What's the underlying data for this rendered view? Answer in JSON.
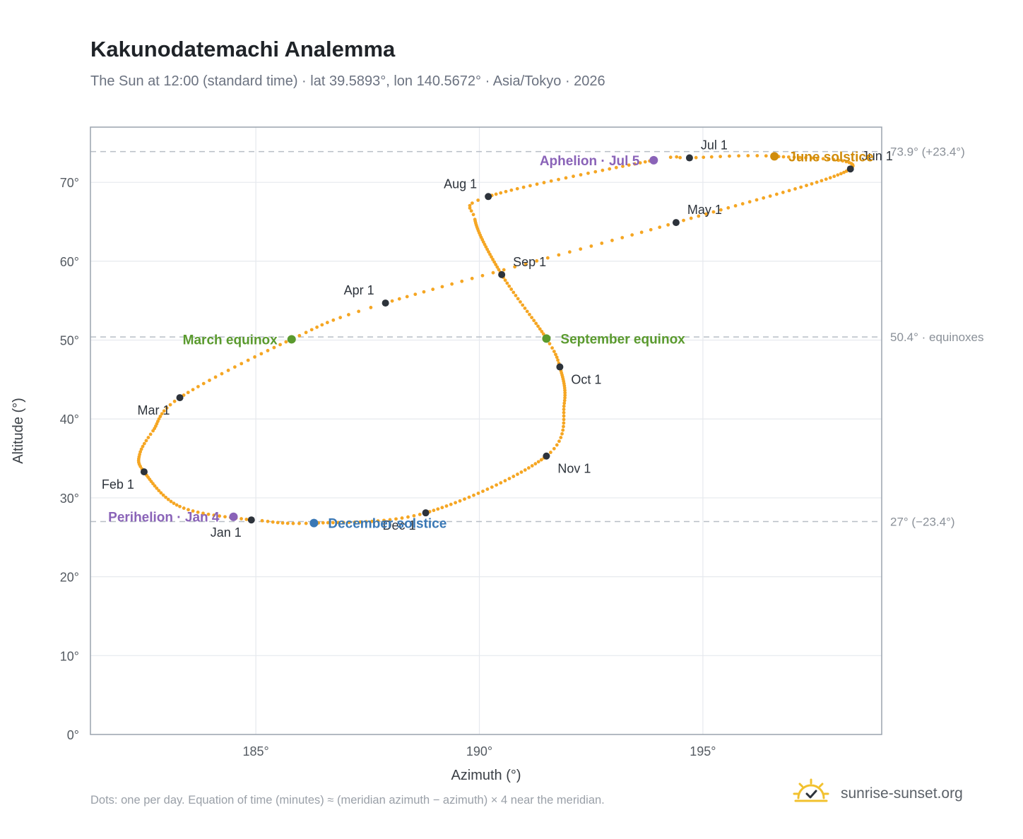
{
  "header": {
    "title": "Kakunodatemachi Analemma",
    "subtitle": "The Sun at 12:00 (standard time) · lat 39.5893°, lon 140.5672° · Asia/Tokyo · 2026"
  },
  "footnote": "Dots: one per day. Equation of time (minutes) ≈ (meridian azimuth − azimuth) × 4 near the meridian.",
  "brand": {
    "text": "sunrise-sunset.org",
    "icon": "sun-logo-icon"
  },
  "chart_data": {
    "type": "scatter",
    "xlabel": "Azimuth (°)",
    "ylabel": "Altitude (°)",
    "xlim": [
      181.3,
      199.0
    ],
    "ylim": [
      0,
      77
    ],
    "x_ticks": [
      185,
      190,
      195
    ],
    "x_tick_labels": [
      "185°",
      "190°",
      "195°"
    ],
    "y_ticks": [
      0,
      10,
      20,
      30,
      40,
      50,
      60,
      70
    ],
    "y_tick_labels": [
      "0°",
      "10°",
      "20°",
      "30°",
      "40°",
      "50°",
      "60°",
      "70°"
    ],
    "grid": true,
    "colors": {
      "path": "#f5a623",
      "month": "#2d333b",
      "equinox": "#5a9a2e",
      "june_solstice": "#d08c0c",
      "december_solstice": "#3a78b5",
      "apsis": "#8a63b8",
      "reference": "#b8bec6"
    },
    "reference_lines": [
      {
        "y": 73.9,
        "label": "73.9° (+23.4°)"
      },
      {
        "y": 50.4,
        "label": "50.4° · equinoxes"
      },
      {
        "y": 27.0,
        "label": "27° (−23.4°)"
      }
    ],
    "path_anchors": [
      {
        "doy": 1,
        "az": 184.9,
        "alt": 27.2
      },
      {
        "doy": 15,
        "az": 183.3,
        "alt": 28.9
      },
      {
        "doy": 32,
        "az": 182.5,
        "alt": 33.3
      },
      {
        "doy": 40,
        "az": 182.4,
        "alt": 35.5
      },
      {
        "doy": 48,
        "az": 182.7,
        "alt": 38.5
      },
      {
        "doy": 60,
        "az": 183.3,
        "alt": 42.7
      },
      {
        "doy": 79,
        "az": 185.8,
        "alt": 50.1
      },
      {
        "doy": 91,
        "az": 187.9,
        "alt": 54.7
      },
      {
        "doy": 121,
        "az": 194.4,
        "alt": 64.9
      },
      {
        "doy": 152,
        "az": 198.3,
        "alt": 71.7
      },
      {
        "doy": 172,
        "az": 196.6,
        "alt": 73.3
      },
      {
        "doy": 182,
        "az": 194.7,
        "alt": 73.1
      },
      {
        "doy": 186,
        "az": 193.9,
        "alt": 72.8
      },
      {
        "doy": 213,
        "az": 190.2,
        "alt": 68.2
      },
      {
        "doy": 220,
        "az": 189.9,
        "alt": 65.3
      },
      {
        "doy": 244,
        "az": 190.5,
        "alt": 58.3
      },
      {
        "doy": 266,
        "az": 191.5,
        "alt": 50.2
      },
      {
        "doy": 274,
        "az": 191.8,
        "alt": 46.6
      },
      {
        "doy": 290,
        "az": 191.9,
        "alt": 42.0
      },
      {
        "doy": 305,
        "az": 191.5,
        "alt": 35.3
      },
      {
        "doy": 335,
        "az": 188.8,
        "alt": 28.1
      },
      {
        "doy": 355,
        "az": 186.3,
        "alt": 26.8
      },
      {
        "doy": 365,
        "az": 185.0,
        "alt": 27.2
      }
    ],
    "month_markers": [
      {
        "label": "Jan 1",
        "az": 184.9,
        "alt": 27.2,
        "anchor": "below-left"
      },
      {
        "label": "Feb 1",
        "az": 182.5,
        "alt": 33.3,
        "anchor": "below-left"
      },
      {
        "label": "Mar 1",
        "az": 183.3,
        "alt": 42.7,
        "anchor": "below-left"
      },
      {
        "label": "Apr 1",
        "az": 187.9,
        "alt": 54.7,
        "anchor": "above-left"
      },
      {
        "label": "May 1",
        "az": 194.4,
        "alt": 64.9,
        "anchor": "above-right"
      },
      {
        "label": "Jun 1",
        "az": 198.3,
        "alt": 71.7,
        "anchor": "above-right"
      },
      {
        "label": "Jul 1",
        "az": 194.7,
        "alt": 73.1,
        "anchor": "above-right"
      },
      {
        "label": "Aug 1",
        "az": 190.2,
        "alt": 68.2,
        "anchor": "above-left"
      },
      {
        "label": "Sep 1",
        "az": 190.5,
        "alt": 58.3,
        "anchor": "above-right"
      },
      {
        "label": "Oct 1",
        "az": 191.8,
        "alt": 46.6,
        "anchor": "below-right"
      },
      {
        "label": "Nov 1",
        "az": 191.5,
        "alt": 35.3,
        "anchor": "below-right"
      },
      {
        "label": "Dec 1",
        "az": 188.8,
        "alt": 28.1,
        "anchor": "below-left"
      }
    ],
    "events": [
      {
        "label": "March equinox",
        "az": 185.8,
        "alt": 50.1,
        "kind": "equinox",
        "side": "left"
      },
      {
        "label": "September equinox",
        "az": 191.5,
        "alt": 50.2,
        "kind": "equinox",
        "side": "right"
      },
      {
        "label": "June solstice",
        "az": 196.6,
        "alt": 73.3,
        "kind": "june_solstice",
        "side": "right"
      },
      {
        "label": "December solstice",
        "az": 186.3,
        "alt": 26.8,
        "kind": "december_solstice",
        "side": "right"
      },
      {
        "label": "Perihelion · Jan 4",
        "az": 184.5,
        "alt": 27.6,
        "kind": "apsis",
        "side": "left"
      },
      {
        "label": "Aphelion · Jul 5",
        "az": 193.9,
        "alt": 72.8,
        "kind": "apsis",
        "side": "left"
      }
    ]
  }
}
